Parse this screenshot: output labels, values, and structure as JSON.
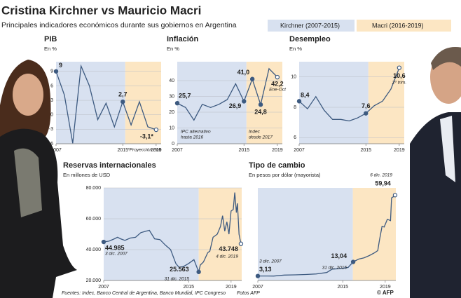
{
  "title": "Cristina Kirchner vs Mauricio Macri",
  "subtitle": "Principales indicadores económicos durante sus gobiernos en Argentina",
  "periods": [
    {
      "name": "Kirchner (2007-2015)",
      "color": "#d8e1f0"
    },
    {
      "name": "Macri (2016-2019)",
      "color": "#fce6c3"
    }
  ],
  "footer": {
    "sources": "Fuentes: Indec, Banco Central de Argentina, Banco Mundial, IPC Congreso",
    "photos": "Fotos AFP",
    "credit": "© AFP"
  },
  "chart_data": [
    {
      "type": "line",
      "title": "PIB",
      "subtitle": "En %",
      "color": "#3d5a80",
      "x": [
        2007,
        2008,
        2009,
        2010,
        2011,
        2012,
        2013,
        2014,
        2015,
        2016,
        2017,
        2018,
        2019
      ],
      "values": [
        9,
        4.1,
        -5.9,
        10.1,
        6,
        -1,
        2.4,
        -2.5,
        2.7,
        -2.1,
        2.7,
        -2.5,
        -3.1
      ],
      "value_labels": [
        "9",
        null,
        null,
        null,
        null,
        null,
        null,
        null,
        "2,7",
        null,
        null,
        null,
        "-3,1*"
      ],
      "notes": [
        "*Proyección FMI"
      ],
      "xlim": [
        2007,
        2019.6
      ],
      "xticks": [
        2007,
        2015,
        2019
      ],
      "split": 2015.3,
      "ylim": [
        -6,
        11
      ],
      "yticks": [
        -6,
        -3,
        0,
        3,
        6,
        9
      ]
    },
    {
      "type": "line",
      "title": "Inflación",
      "subtitle": "En %",
      "color": "#3d5a80",
      "x": [
        2007,
        2008,
        2009,
        2010,
        2011,
        2012,
        2013,
        2014,
        2015,
        2016,
        2017,
        2018,
        2019
      ],
      "values": [
        25.7,
        23,
        15,
        25,
        23,
        25,
        28,
        38,
        26.9,
        41,
        24.8,
        47.6,
        42.2
      ],
      "value_labels": [
        "25,7",
        null,
        null,
        null,
        null,
        null,
        null,
        null,
        "26,9",
        "41,0",
        "24,8",
        null,
        "42,2"
      ],
      "notes": [
        "IPC alternativo",
        "hasta 2016",
        "Indec",
        "desde 2017",
        "Ene-Oct"
      ],
      "xlim": [
        2007,
        2019.6
      ],
      "xticks": [
        2007,
        2015,
        2019
      ],
      "split": 2015.3,
      "ylim": [
        0,
        52
      ],
      "yticks": [
        0,
        10,
        20,
        30,
        40
      ]
    },
    {
      "type": "line",
      "title": "Desempleo",
      "subtitle": "En %",
      "color": "#3d5a80",
      "x": [
        2007,
        2008,
        2009,
        2010,
        2011,
        2012,
        2013,
        2014,
        2015,
        2016,
        2017,
        2018,
        2019
      ],
      "values": [
        8.4,
        7.9,
        8.7,
        7.8,
        7.2,
        7.2,
        7.1,
        7.3,
        7.6,
        8.1,
        8.4,
        9.2,
        10.6
      ],
      "value_labels": [
        "8,4",
        null,
        null,
        null,
        null,
        null,
        null,
        null,
        "7,6",
        null,
        null,
        null,
        "10,6"
      ],
      "notes": [
        "2º trim."
      ],
      "xlim": [
        2007,
        2019.6
      ],
      "xticks": [
        2007,
        2015,
        2019
      ],
      "split": 2015.3,
      "ylim": [
        5.6,
        11
      ],
      "yticks": [
        6,
        8,
        10
      ]
    },
    {
      "type": "line",
      "title": "Reservas internacionales",
      "subtitle": "En millones de USD",
      "color": "#3d5a80",
      "x": [
        2007,
        2007.5,
        2008,
        2008.3,
        2008.6,
        2009,
        2009.5,
        2010,
        2010.5,
        2011,
        2011.3,
        2011.8,
        2012.3,
        2012.8,
        2013.3,
        2013.8,
        2014.1,
        2014.5,
        2015,
        2015.5,
        2015.95,
        2016.1,
        2016.4,
        2016.8,
        2017,
        2017.3,
        2017.7,
        2018,
        2018.2,
        2018.4,
        2018.6,
        2018.8,
        2019,
        2019.2,
        2019.35,
        2019.5,
        2019.6,
        2019.75,
        2019.93
      ],
      "values": [
        44985,
        45500,
        47000,
        48000,
        47000,
        46000,
        47500,
        48000,
        51000,
        52000,
        52500,
        47000,
        46500,
        43000,
        40000,
        31000,
        28500,
        29000,
        31000,
        33500,
        25563,
        30000,
        32000,
        38000,
        39000,
        48000,
        50000,
        55000,
        62000,
        52000,
        58000,
        50000,
        65000,
        66000,
        77000,
        64000,
        70000,
        50000,
        43748
      ],
      "value_labels": [
        "44.985",
        null,
        null,
        null,
        null,
        null,
        null,
        null,
        null,
        null,
        null,
        null,
        null,
        null,
        null,
        null,
        null,
        null,
        null,
        null,
        "25.563",
        null,
        null,
        null,
        null,
        null,
        null,
        null,
        null,
        null,
        null,
        null,
        null,
        null,
        null,
        null,
        null,
        null,
        "43.748"
      ],
      "notes": [
        "3 dic. 2007",
        "31 dic. 2015",
        "4 dic. 2019"
      ],
      "xlim": [
        2007,
        2020
      ],
      "xticks": [
        2007,
        2015,
        2019
      ],
      "split": 2015.95,
      "ylim": [
        20000,
        80000
      ],
      "yticks": [
        {
          "value": 20000,
          "label": "20.000"
        },
        {
          "value": 40000,
          "label": "40.000"
        },
        {
          "value": 60000,
          "label": "60.000"
        },
        {
          "value": 80000,
          "label": "80.000"
        }
      ]
    },
    {
      "type": "line",
      "title": "Tipo de cambio",
      "subtitle": "En pesos por dólar (mayorista)",
      "color": "#3d5a80",
      "x": [
        2007,
        2008.5,
        2009.5,
        2010.5,
        2011.5,
        2012.5,
        2013.5,
        2014,
        2014.5,
        2015,
        2015.5,
        2015.98,
        2016.5,
        2017,
        2017.5,
        2018,
        2018.3,
        2018.45,
        2018.7,
        2018.9,
        2019.2,
        2019.5,
        2019.6,
        2019.8,
        2019.93
      ],
      "values": [
        3.13,
        3.1,
        3.8,
        3.95,
        4.2,
        4.6,
        5.6,
        8,
        8.2,
        8.6,
        9.1,
        13.04,
        15,
        15.9,
        17.5,
        19.5,
        21,
        28,
        38,
        37.5,
        43,
        42,
        58,
        59,
        59.94
      ],
      "value_labels": [
        "3,13",
        null,
        null,
        null,
        null,
        null,
        null,
        null,
        null,
        null,
        null,
        "13,04",
        null,
        null,
        null,
        null,
        null,
        null,
        null,
        null,
        null,
        null,
        null,
        null,
        "59,94"
      ],
      "notes": [
        "3 dic. 2007",
        "31 dic. 2015",
        "6 dic. 2019"
      ],
      "xlim": [
        2007,
        2020
      ],
      "xticks": [
        2007,
        2015,
        2019
      ],
      "split": 2015.95,
      "ylim": [
        0,
        65
      ]
    }
  ]
}
